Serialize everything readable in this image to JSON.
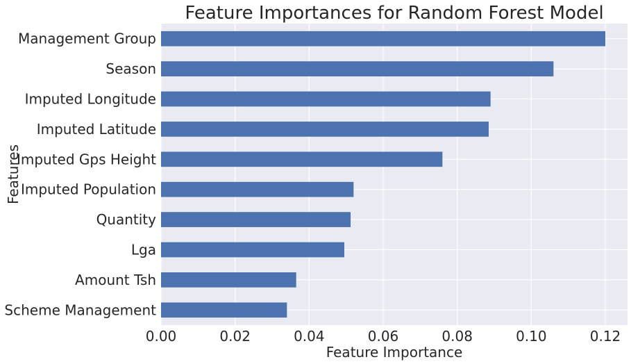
{
  "chart_data": {
    "type": "bar",
    "orientation": "horizontal",
    "title": "Feature Importances for Random Forest Model",
    "xlabel": "Feature Importance",
    "ylabel": "Features",
    "categories": [
      "Management Group",
      "Season",
      "Imputed Longitude",
      "Imputed Latitude",
      "Imputed Gps Height",
      "Imputed Population",
      "Quantity",
      "Lga",
      "Amount Tsh",
      "Scheme Management"
    ],
    "values": [
      0.12,
      0.106,
      0.089,
      0.0885,
      0.076,
      0.052,
      0.0512,
      0.0495,
      0.0365,
      0.034
    ],
    "xlim": [
      0,
      0.126
    ],
    "xticks": [
      "0.00",
      "0.02",
      "0.04",
      "0.06",
      "0.08",
      "0.10",
      "0.12"
    ],
    "xtick_values": [
      0,
      0.02,
      0.04,
      0.06,
      0.08,
      0.1,
      0.12
    ],
    "grid": true,
    "colors": {
      "bar": "#4c72b0",
      "plot_background": "#eaeaf2",
      "grid": "#ffffff"
    }
  }
}
